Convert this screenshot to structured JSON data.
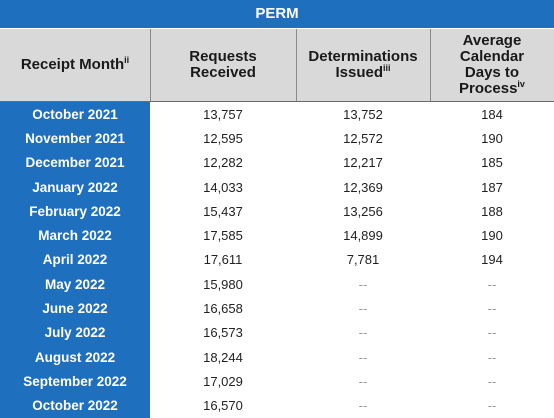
{
  "title": "PERM",
  "headers": {
    "month": "Receipt Month",
    "month_sup": "ii",
    "requests_line1": "Requests",
    "requests_line2": "Received",
    "determinations_line1": "Determinations",
    "determinations_line2": "Issued",
    "determinations_sup": "iii",
    "days_line1": "Average",
    "days_line2": "Calendar",
    "days_line3": "Days to",
    "days_line4": "Process",
    "days_sup": "iv"
  },
  "rows": [
    {
      "month": "October 2021",
      "requests": "13,757",
      "determinations": "13,752",
      "days": "184"
    },
    {
      "month": "November 2021",
      "requests": "12,595",
      "determinations": "12,572",
      "days": "190"
    },
    {
      "month": "December 2021",
      "requests": "12,282",
      "determinations": "12,217",
      "days": "185"
    },
    {
      "month": "January 2022",
      "requests": "14,033",
      "determinations": "12,369",
      "days": "187"
    },
    {
      "month": "February 2022",
      "requests": "15,437",
      "determinations": "13,256",
      "days": "188"
    },
    {
      "month": "March  2022",
      "requests": "17,585",
      "determinations": "14,899",
      "days": "190"
    },
    {
      "month": "April 2022",
      "requests": "17,611",
      "determinations": "7,781",
      "days": "194"
    },
    {
      "month": "May 2022",
      "requests": "15,980",
      "determinations": "--",
      "days": "--"
    },
    {
      "month": "June 2022",
      "requests": "16,658",
      "determinations": "--",
      "days": "--"
    },
    {
      "month": "July 2022",
      "requests": "16,573",
      "determinations": "--",
      "days": "--"
    },
    {
      "month": "August 2022",
      "requests": "18,244",
      "determinations": "--",
      "days": "--"
    },
    {
      "month": "September 2022",
      "requests": "17,029",
      "determinations": "--",
      "days": "--"
    },
    {
      "month": "October 2022",
      "requests": "16,570",
      "determinations": "--",
      "days": "--"
    }
  ],
  "colors": {
    "accent": "#1f6fbf",
    "header_bg": "#d9d9d9"
  }
}
